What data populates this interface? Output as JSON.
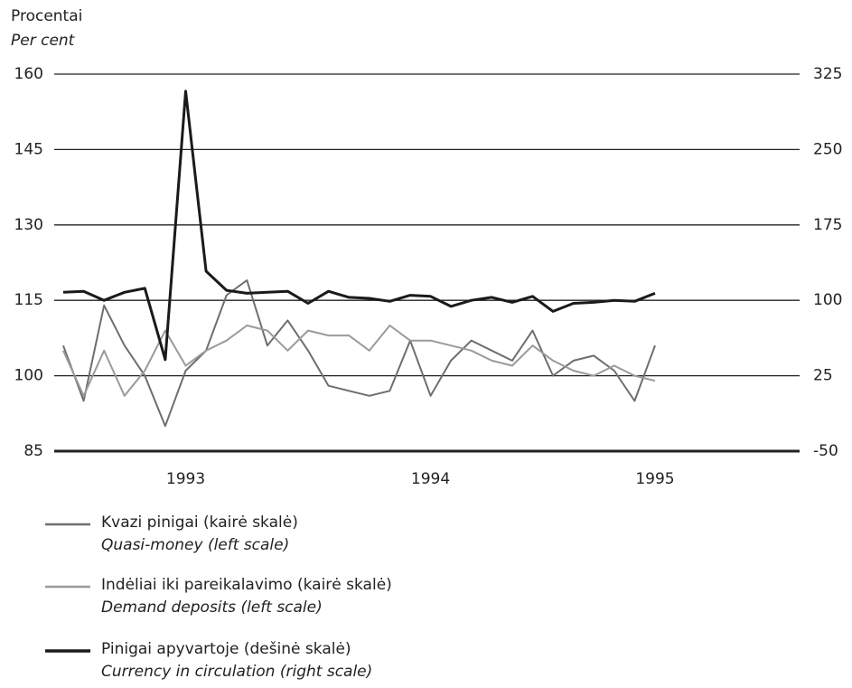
{
  "chart_data": {
    "type": "line",
    "title": "Procentai",
    "subtitle": "Per cent",
    "categories": [
      null,
      null,
      null,
      null,
      null,
      null,
      "1993",
      null,
      null,
      null,
      null,
      null,
      null,
      null,
      null,
      null,
      null,
      null,
      "1994",
      null,
      null,
      null,
      null,
      null,
      null,
      null,
      null,
      null,
      null,
      "1995"
    ],
    "ylim": [
      85,
      160
    ],
    "yticks": [
      85,
      100,
      115,
      130,
      145,
      160
    ],
    "y2lim": [
      -50,
      325
    ],
    "y2ticks": [
      -50,
      25,
      100,
      175,
      250,
      325
    ],
    "grid": true,
    "legend": "bottom",
    "series": [
      {
        "name": "Kvazi pinigai (kairė skalė)",
        "name_en": "Quasi-money (left scale)",
        "color": "#6e6e6e",
        "values": [
          106,
          95,
          114,
          106,
          100,
          90,
          101,
          105,
          116,
          119,
          106,
          111,
          105,
          98,
          97,
          96,
          97,
          107,
          96,
          103,
          107,
          105,
          103,
          109,
          100,
          103,
          104,
          101,
          95,
          106
        ]
      },
      {
        "name": "Indėliai iki pareikalavimo (kairė skalė)",
        "name_en": "Demand deposits (left scale)",
        "color": "#9a9a9a",
        "values": [
          105,
          96,
          105,
          96,
          101,
          109,
          102,
          105,
          107,
          110,
          109,
          105,
          109,
          108,
          108,
          105,
          110,
          107,
          107,
          106,
          105,
          103,
          102,
          106,
          103,
          101,
          100,
          102,
          100,
          99
        ]
      },
      {
        "name": "Pinigai apyvartoje (dešinė skalė)",
        "name_en": "Currency in circulation (right scale)",
        "color": "#1a1a1a",
        "axis": "y2",
        "values": [
          108,
          109,
          100,
          108,
          112,
          41,
          308,
          129,
          110,
          107,
          108,
          109,
          97,
          109,
          103,
          102,
          99,
          105,
          104,
          94,
          100,
          103,
          98,
          104,
          89,
          97,
          98,
          100,
          99,
          107
        ]
      }
    ]
  }
}
